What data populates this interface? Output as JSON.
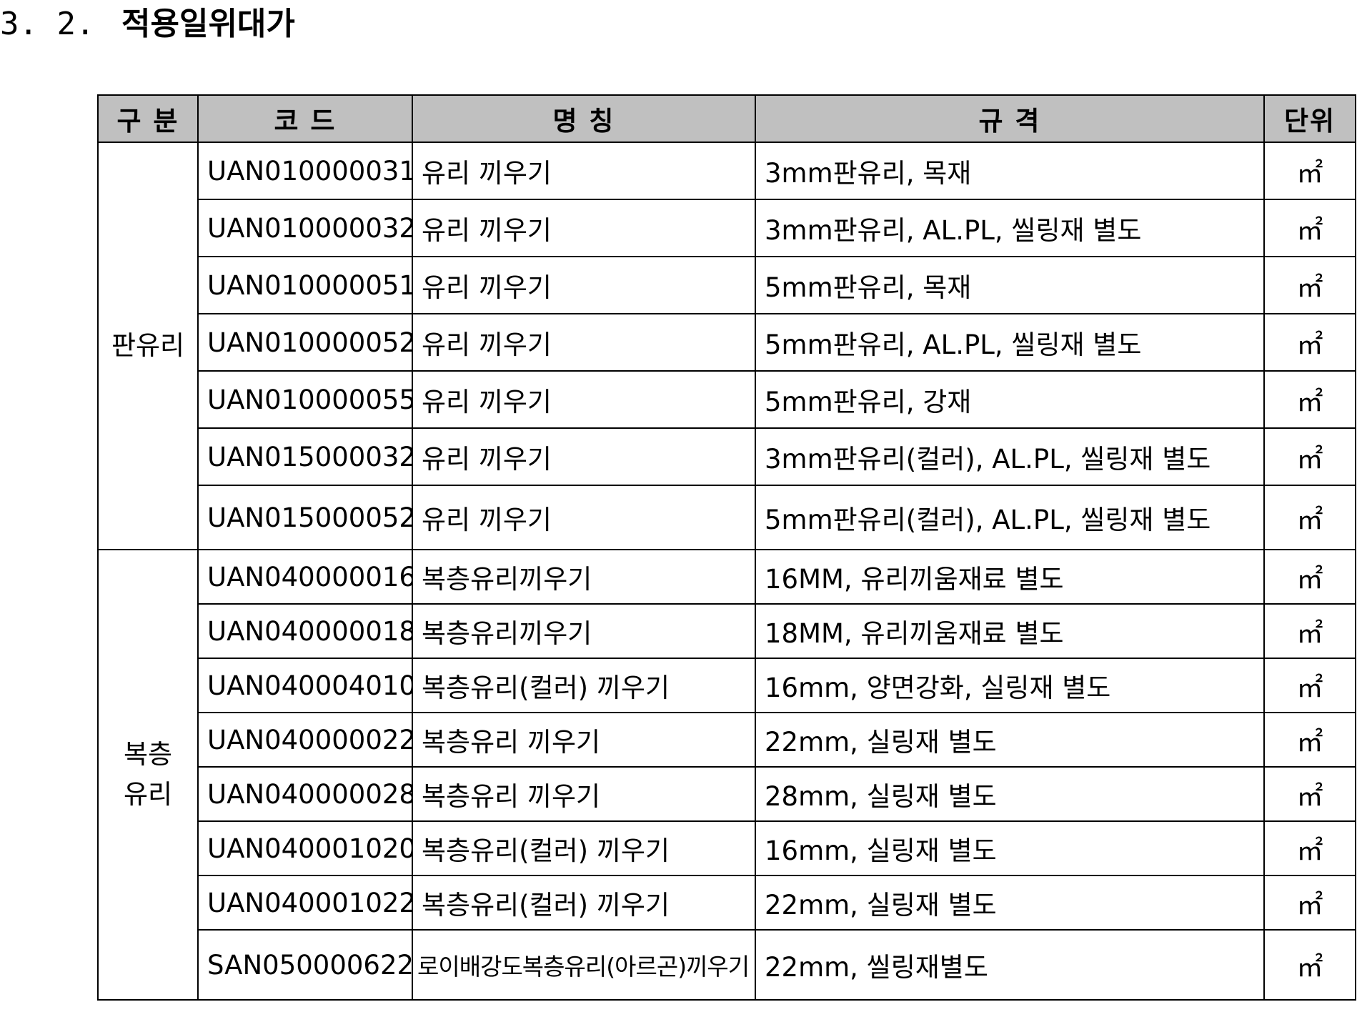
{
  "section": {
    "number": "3. 2.",
    "title": "적용일위대가"
  },
  "table": {
    "headers": {
      "category": "구 분",
      "code": "코 드",
      "name": "명 칭",
      "spec": "규 격",
      "unit": "단위"
    },
    "groups": [
      {
        "label": "판유리",
        "rows": [
          {
            "code": "UAN010000031",
            "name": "유리 끼우기",
            "spec": "3mm판유리, 목재",
            "unit": "㎡"
          },
          {
            "code": "UAN010000032",
            "name": "유리 끼우기",
            "spec": "3mm판유리, AL.PL, 씰링재 별도",
            "unit": "㎡"
          },
          {
            "code": "UAN010000051",
            "name": "유리 끼우기",
            "spec": "5mm판유리, 목재",
            "unit": "㎡"
          },
          {
            "code": "UAN010000052",
            "name": "유리 끼우기",
            "spec": "5mm판유리, AL.PL, 씰링재 별도",
            "unit": "㎡"
          },
          {
            "code": "UAN010000055",
            "name": "유리 끼우기",
            "spec": "5mm판유리, 강재",
            "unit": "㎡"
          },
          {
            "code": "UAN015000032",
            "name": "유리 끼우기",
            "spec": "3mm판유리(컬러), AL.PL, 씰링재 별도",
            "unit": "㎡"
          },
          {
            "code": "UAN015000052",
            "name": "유리 끼우기",
            "spec": "5mm판유리(컬러), AL.PL, 씰링재 별도",
            "unit": "㎡"
          }
        ]
      },
      {
        "label": "복층\n유리",
        "rows": [
          {
            "code": "UAN040000016",
            "name": "복층유리끼우기",
            "spec": "16MM, 유리끼움재료 별도",
            "unit": "㎡"
          },
          {
            "code": "UAN040000018",
            "name": "복층유리끼우기",
            "spec": "18MM, 유리끼움재료 별도",
            "unit": "㎡"
          },
          {
            "code": "UAN040004010",
            "name": "복층유리(컬러) 끼우기",
            "spec": "16mm, 양면강화, 실링재 별도",
            "unit": "㎡"
          },
          {
            "code": "UAN040000022",
            "name": "복층유리 끼우기",
            "spec": "22mm, 실링재 별도",
            "unit": "㎡"
          },
          {
            "code": "UAN040000028",
            "name": "복층유리 끼우기",
            "spec": "28mm, 실링재 별도",
            "unit": "㎡"
          },
          {
            "code": "UAN040001020",
            "name": "복층유리(컬러) 끼우기",
            "spec": "16mm, 실링재 별도",
            "unit": "㎡"
          },
          {
            "code": "UAN040001022",
            "name": "복층유리(컬러) 끼우기",
            "spec": "22mm, 실링재 별도",
            "unit": "㎡"
          },
          {
            "code": "SAN050000622",
            "name": "로이배강도복층유리(아르곤)끼우기",
            "spec": "22mm, 씰링재별도",
            "unit": "㎡"
          }
        ]
      }
    ]
  }
}
